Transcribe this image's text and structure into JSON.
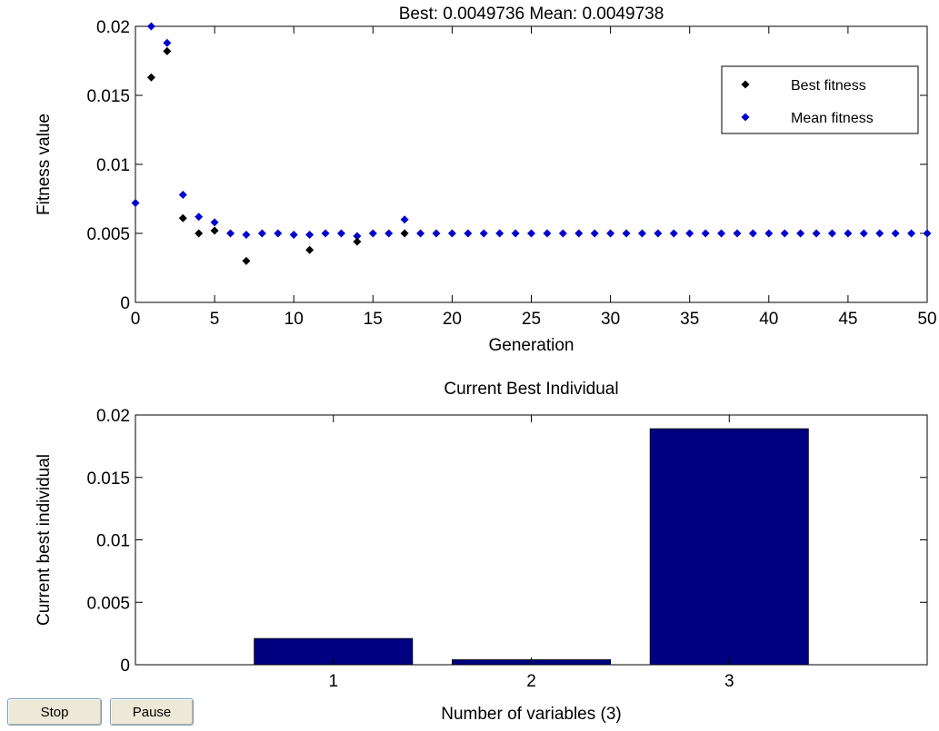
{
  "chart_data": [
    {
      "type": "scatter",
      "title": "Best: 0.0049736 Mean: 0.0049738",
      "xlabel": "Generation",
      "ylabel": "Fitness value",
      "xlim": [
        0,
        50
      ],
      "ylim": [
        0,
        0.02
      ],
      "xticks": [
        0,
        5,
        10,
        15,
        20,
        25,
        30,
        35,
        40,
        45,
        50
      ],
      "yticks": [
        0,
        0.005,
        0.01,
        0.015,
        0.02
      ],
      "ytick_labels": [
        "0",
        "0.005",
        "0.01",
        "0.015",
        "0.02"
      ],
      "grid": false,
      "legend_position": "top-right",
      "series": [
        {
          "name": "Best fitness",
          "color": "#000000",
          "x": [
            1,
            2,
            3,
            4,
            5,
            7,
            11,
            14,
            17
          ],
          "y": [
            0.0163,
            0.0182,
            0.0061,
            0.005,
            0.0052,
            0.003,
            0.0038,
            0.0044,
            0.005
          ]
        },
        {
          "name": "Mean fitness",
          "color": "#0000cc",
          "x": [
            0,
            1,
            2,
            3,
            4,
            5,
            6,
            7,
            8,
            9,
            10,
            11,
            12,
            13,
            14,
            15,
            16,
            17,
            18,
            19,
            20,
            21,
            22,
            23,
            24,
            25,
            26,
            27,
            28,
            29,
            30,
            31,
            32,
            33,
            34,
            35,
            36,
            37,
            38,
            39,
            40,
            41,
            42,
            43,
            44,
            45,
            46,
            47,
            48,
            49,
            50
          ],
          "y": [
            0.0072,
            0.02,
            0.0188,
            0.0078,
            0.0062,
            0.0058,
            0.005,
            0.0049,
            0.005,
            0.005,
            0.0049,
            0.0049,
            0.005,
            0.005,
            0.0048,
            0.005,
            0.005,
            0.006,
            0.005,
            0.005,
            0.005,
            0.005,
            0.005,
            0.005,
            0.005,
            0.005,
            0.005,
            0.005,
            0.005,
            0.005,
            0.005,
            0.005,
            0.005,
            0.005,
            0.005,
            0.005,
            0.005,
            0.005,
            0.005,
            0.005,
            0.005,
            0.005,
            0.005,
            0.005,
            0.005,
            0.005,
            0.005,
            0.005,
            0.005,
            0.005,
            0.005
          ]
        }
      ]
    },
    {
      "type": "bar",
      "title": "Current Best Individual",
      "xlabel": "Number of variables (3)",
      "ylabel": "Current best individual",
      "categories": [
        "1",
        "2",
        "3"
      ],
      "values": [
        0.0021,
        0.0004,
        0.0189
      ],
      "xlim": [
        0,
        4
      ],
      "ylim": [
        0,
        0.02
      ],
      "yticks": [
        0,
        0.005,
        0.01,
        0.015,
        0.02
      ],
      "ytick_labels": [
        "0",
        "0.005",
        "0.01",
        "0.015",
        "0.02"
      ],
      "bar_color": "#000080",
      "grid": false
    }
  ],
  "buttons": {
    "stop_label": "Stop",
    "pause_label": "Pause"
  }
}
